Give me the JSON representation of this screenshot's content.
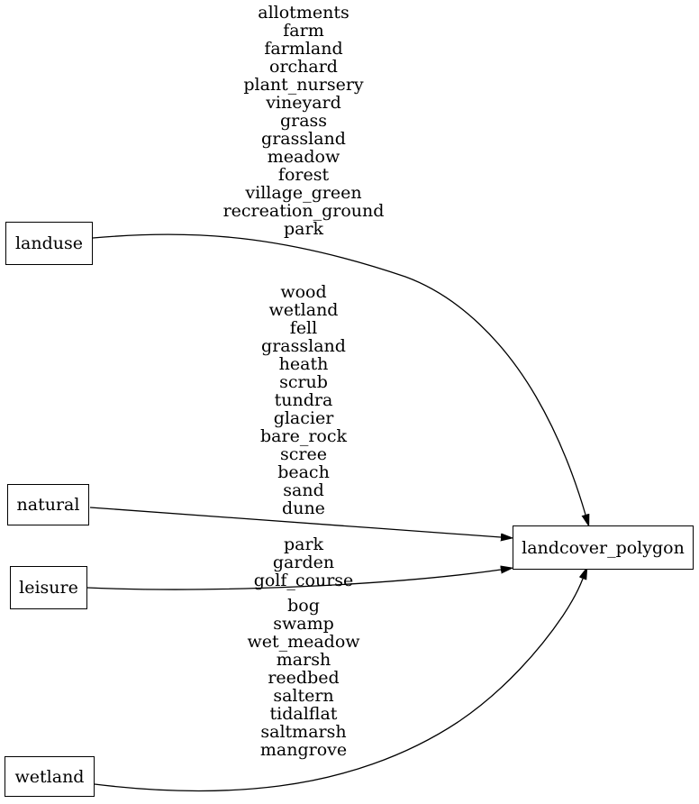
{
  "diagram": {
    "background_color": "#ffffff",
    "stroke_color": "#000000",
    "text_color": "#000000",
    "nodes": [
      {
        "id": "landuse",
        "label": "landuse"
      },
      {
        "id": "natural",
        "label": "natural"
      },
      {
        "id": "leisure",
        "label": "leisure"
      },
      {
        "id": "wetland",
        "label": "wetland"
      },
      {
        "id": "landcover_polygon",
        "label": "landcover_polygon"
      }
    ],
    "edges": [
      {
        "from": "landuse",
        "to": "landcover_polygon",
        "values": [
          "allotments",
          "farm",
          "farmland",
          "orchard",
          "plant_nursery",
          "vineyard",
          "grass",
          "grassland",
          "meadow",
          "forest",
          "village_green",
          "recreation_ground",
          "park"
        ]
      },
      {
        "from": "natural",
        "to": "landcover_polygon",
        "values": [
          "wood",
          "wetland",
          "fell",
          "grassland",
          "heath",
          "scrub",
          "tundra",
          "glacier",
          "bare_rock",
          "scree",
          "beach",
          "sand",
          "dune"
        ]
      },
      {
        "from": "leisure",
        "to": "landcover_polygon",
        "values": [
          "park",
          "garden",
          "golf_course"
        ]
      },
      {
        "from": "wetland",
        "to": "landcover_polygon",
        "values": [
          "bog",
          "swamp",
          "wet_meadow",
          "marsh",
          "reedbed",
          "saltern",
          "tidalflat",
          "saltmarsh",
          "mangrove"
        ]
      }
    ]
  }
}
